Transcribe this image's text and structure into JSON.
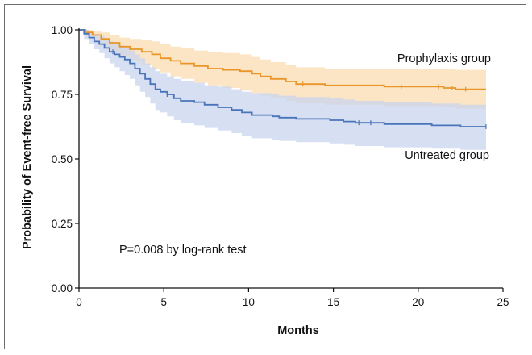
{
  "chart_data": {
    "type": "line",
    "subtype": "kaplan-meier",
    "xlabel": "Months",
    "ylabel": "Probability of Event-free Survival",
    "xlim": [
      0,
      25
    ],
    "ylim": [
      0,
      1
    ],
    "xticks": [
      0,
      5,
      10,
      15,
      20,
      25
    ],
    "xtick_labels": [
      "0",
      "5",
      "10",
      "15",
      "20",
      "25"
    ],
    "yticks": [
      0,
      0.25,
      0.5,
      0.75,
      1
    ],
    "ytick_labels": [
      "0.00",
      "0.25",
      "0.50",
      "0.75",
      "1.00"
    ],
    "annotation": "P=0.008 by log-rank test",
    "series": [
      {
        "name": "Prophylaxis group",
        "color": "#e8962a",
        "band_color": "#fbdcb0",
        "steps": [
          [
            0,
            1.0
          ],
          [
            0.4,
            0.99
          ],
          [
            0.8,
            0.98
          ],
          [
            1.3,
            0.965
          ],
          [
            1.8,
            0.95
          ],
          [
            2.4,
            0.935
          ],
          [
            3.0,
            0.925
          ],
          [
            3.7,
            0.915
          ],
          [
            4.3,
            0.905
          ],
          [
            4.8,
            0.89
          ],
          [
            5.4,
            0.88
          ],
          [
            6.0,
            0.87
          ],
          [
            6.8,
            0.86
          ],
          [
            7.6,
            0.85
          ],
          [
            8.5,
            0.845
          ],
          [
            9.5,
            0.84
          ],
          [
            10.2,
            0.83
          ],
          [
            10.7,
            0.82
          ],
          [
            11.3,
            0.81
          ],
          [
            12.2,
            0.8
          ],
          [
            12.8,
            0.79
          ],
          [
            14.5,
            0.785
          ],
          [
            18.0,
            0.78
          ],
          [
            21.5,
            0.775
          ],
          [
            22.2,
            0.77
          ],
          [
            24,
            0.77
          ]
        ],
        "lower": [
          [
            0,
            1.0
          ],
          [
            0.4,
            0.975
          ],
          [
            0.8,
            0.955
          ],
          [
            1.3,
            0.935
          ],
          [
            1.8,
            0.915
          ],
          [
            2.4,
            0.895
          ],
          [
            3.0,
            0.88
          ],
          [
            3.7,
            0.865
          ],
          [
            4.3,
            0.85
          ],
          [
            4.8,
            0.835
          ],
          [
            5.4,
            0.82
          ],
          [
            6.0,
            0.81
          ],
          [
            6.8,
            0.795
          ],
          [
            7.6,
            0.785
          ],
          [
            8.5,
            0.775
          ],
          [
            9.5,
            0.765
          ],
          [
            10.2,
            0.755
          ],
          [
            10.7,
            0.745
          ],
          [
            11.3,
            0.735
          ],
          [
            12.2,
            0.725
          ],
          [
            12.8,
            0.715
          ],
          [
            14.5,
            0.71
          ],
          [
            18.0,
            0.705
          ],
          [
            21.5,
            0.7
          ],
          [
            22.2,
            0.695
          ],
          [
            24,
            0.695
          ]
        ],
        "upper": [
          [
            0,
            1.0
          ],
          [
            0.4,
            1.0
          ],
          [
            0.8,
            0.995
          ],
          [
            1.3,
            0.99
          ],
          [
            1.8,
            0.98
          ],
          [
            2.4,
            0.97
          ],
          [
            3.0,
            0.965
          ],
          [
            3.7,
            0.96
          ],
          [
            4.3,
            0.955
          ],
          [
            4.8,
            0.945
          ],
          [
            5.4,
            0.935
          ],
          [
            6.0,
            0.93
          ],
          [
            6.8,
            0.92
          ],
          [
            7.6,
            0.915
          ],
          [
            8.5,
            0.91
          ],
          [
            9.5,
            0.905
          ],
          [
            10.2,
            0.895
          ],
          [
            10.7,
            0.885
          ],
          [
            11.3,
            0.875
          ],
          [
            12.2,
            0.865
          ],
          [
            12.8,
            0.855
          ],
          [
            14.5,
            0.85
          ],
          [
            18.0,
            0.85
          ],
          [
            21.5,
            0.85
          ],
          [
            22.2,
            0.845
          ],
          [
            24,
            0.845
          ]
        ],
        "censor_x": [
          13.2,
          19.0,
          21.2,
          22.0,
          22.8
        ]
      },
      {
        "name": "Untreated group",
        "color": "#4a74b9",
        "band_color": "#c9d4ee",
        "steps": [
          [
            0,
            1.0
          ],
          [
            0.3,
            0.985
          ],
          [
            0.6,
            0.97
          ],
          [
            0.9,
            0.955
          ],
          [
            1.2,
            0.945
          ],
          [
            1.5,
            0.93
          ],
          [
            1.8,
            0.915
          ],
          [
            2.1,
            0.905
          ],
          [
            2.4,
            0.895
          ],
          [
            2.7,
            0.885
          ],
          [
            3.0,
            0.87
          ],
          [
            3.3,
            0.85
          ],
          [
            3.6,
            0.83
          ],
          [
            3.9,
            0.81
          ],
          [
            4.2,
            0.79
          ],
          [
            4.5,
            0.77
          ],
          [
            4.8,
            0.76
          ],
          [
            5.2,
            0.75
          ],
          [
            5.6,
            0.735
          ],
          [
            6.0,
            0.725
          ],
          [
            6.8,
            0.72
          ],
          [
            7.4,
            0.71
          ],
          [
            8.2,
            0.7
          ],
          [
            9.0,
            0.69
          ],
          [
            9.6,
            0.68
          ],
          [
            10.2,
            0.67
          ],
          [
            11.4,
            0.665
          ],
          [
            11.8,
            0.66
          ],
          [
            12.8,
            0.655
          ],
          [
            14.8,
            0.65
          ],
          [
            15.6,
            0.645
          ],
          [
            16.3,
            0.64
          ],
          [
            18.0,
            0.635
          ],
          [
            20.8,
            0.63
          ],
          [
            22.5,
            0.625
          ],
          [
            24,
            0.625
          ]
        ],
        "lower": [
          [
            0,
            1.0
          ],
          [
            0.3,
            0.965
          ],
          [
            0.6,
            0.945
          ],
          [
            0.9,
            0.925
          ],
          [
            1.2,
            0.91
          ],
          [
            1.5,
            0.89
          ],
          [
            1.8,
            0.87
          ],
          [
            2.1,
            0.855
          ],
          [
            2.4,
            0.84
          ],
          [
            2.7,
            0.825
          ],
          [
            3.0,
            0.81
          ],
          [
            3.3,
            0.785
          ],
          [
            3.6,
            0.76
          ],
          [
            3.9,
            0.74
          ],
          [
            4.2,
            0.715
          ],
          [
            4.5,
            0.69
          ],
          [
            4.8,
            0.68
          ],
          [
            5.2,
            0.665
          ],
          [
            5.6,
            0.65
          ],
          [
            6.0,
            0.64
          ],
          [
            6.8,
            0.63
          ],
          [
            7.4,
            0.62
          ],
          [
            8.2,
            0.61
          ],
          [
            9.0,
            0.6
          ],
          [
            9.6,
            0.59
          ],
          [
            10.2,
            0.58
          ],
          [
            11.4,
            0.575
          ],
          [
            11.8,
            0.57
          ],
          [
            12.8,
            0.565
          ],
          [
            14.8,
            0.56
          ],
          [
            15.6,
            0.555
          ],
          [
            16.3,
            0.55
          ],
          [
            18.0,
            0.545
          ],
          [
            20.8,
            0.54
          ],
          [
            22.5,
            0.535
          ],
          [
            24,
            0.535
          ]
        ],
        "upper": [
          [
            0,
            1.0
          ],
          [
            0.3,
            1.0
          ],
          [
            0.6,
            0.99
          ],
          [
            0.9,
            0.98
          ],
          [
            1.2,
            0.975
          ],
          [
            1.5,
            0.965
          ],
          [
            1.8,
            0.955
          ],
          [
            2.1,
            0.945
          ],
          [
            2.4,
            0.94
          ],
          [
            2.7,
            0.93
          ],
          [
            3.0,
            0.92
          ],
          [
            3.3,
            0.905
          ],
          [
            3.6,
            0.89
          ],
          [
            3.9,
            0.87
          ],
          [
            4.2,
            0.855
          ],
          [
            4.5,
            0.84
          ],
          [
            4.8,
            0.83
          ],
          [
            5.2,
            0.82
          ],
          [
            5.6,
            0.81
          ],
          [
            6.0,
            0.8
          ],
          [
            6.8,
            0.795
          ],
          [
            7.4,
            0.785
          ],
          [
            8.2,
            0.78
          ],
          [
            9.0,
            0.77
          ],
          [
            9.6,
            0.76
          ],
          [
            10.2,
            0.755
          ],
          [
            11.4,
            0.75
          ],
          [
            11.8,
            0.745
          ],
          [
            12.8,
            0.74
          ],
          [
            14.8,
            0.735
          ],
          [
            15.6,
            0.73
          ],
          [
            16.3,
            0.725
          ],
          [
            18.0,
            0.72
          ],
          [
            20.8,
            0.715
          ],
          [
            22.5,
            0.71
          ],
          [
            24,
            0.71
          ]
        ],
        "censor_x": [
          2.0,
          5.2,
          16.5,
          17.2,
          24.0
        ]
      }
    ]
  }
}
